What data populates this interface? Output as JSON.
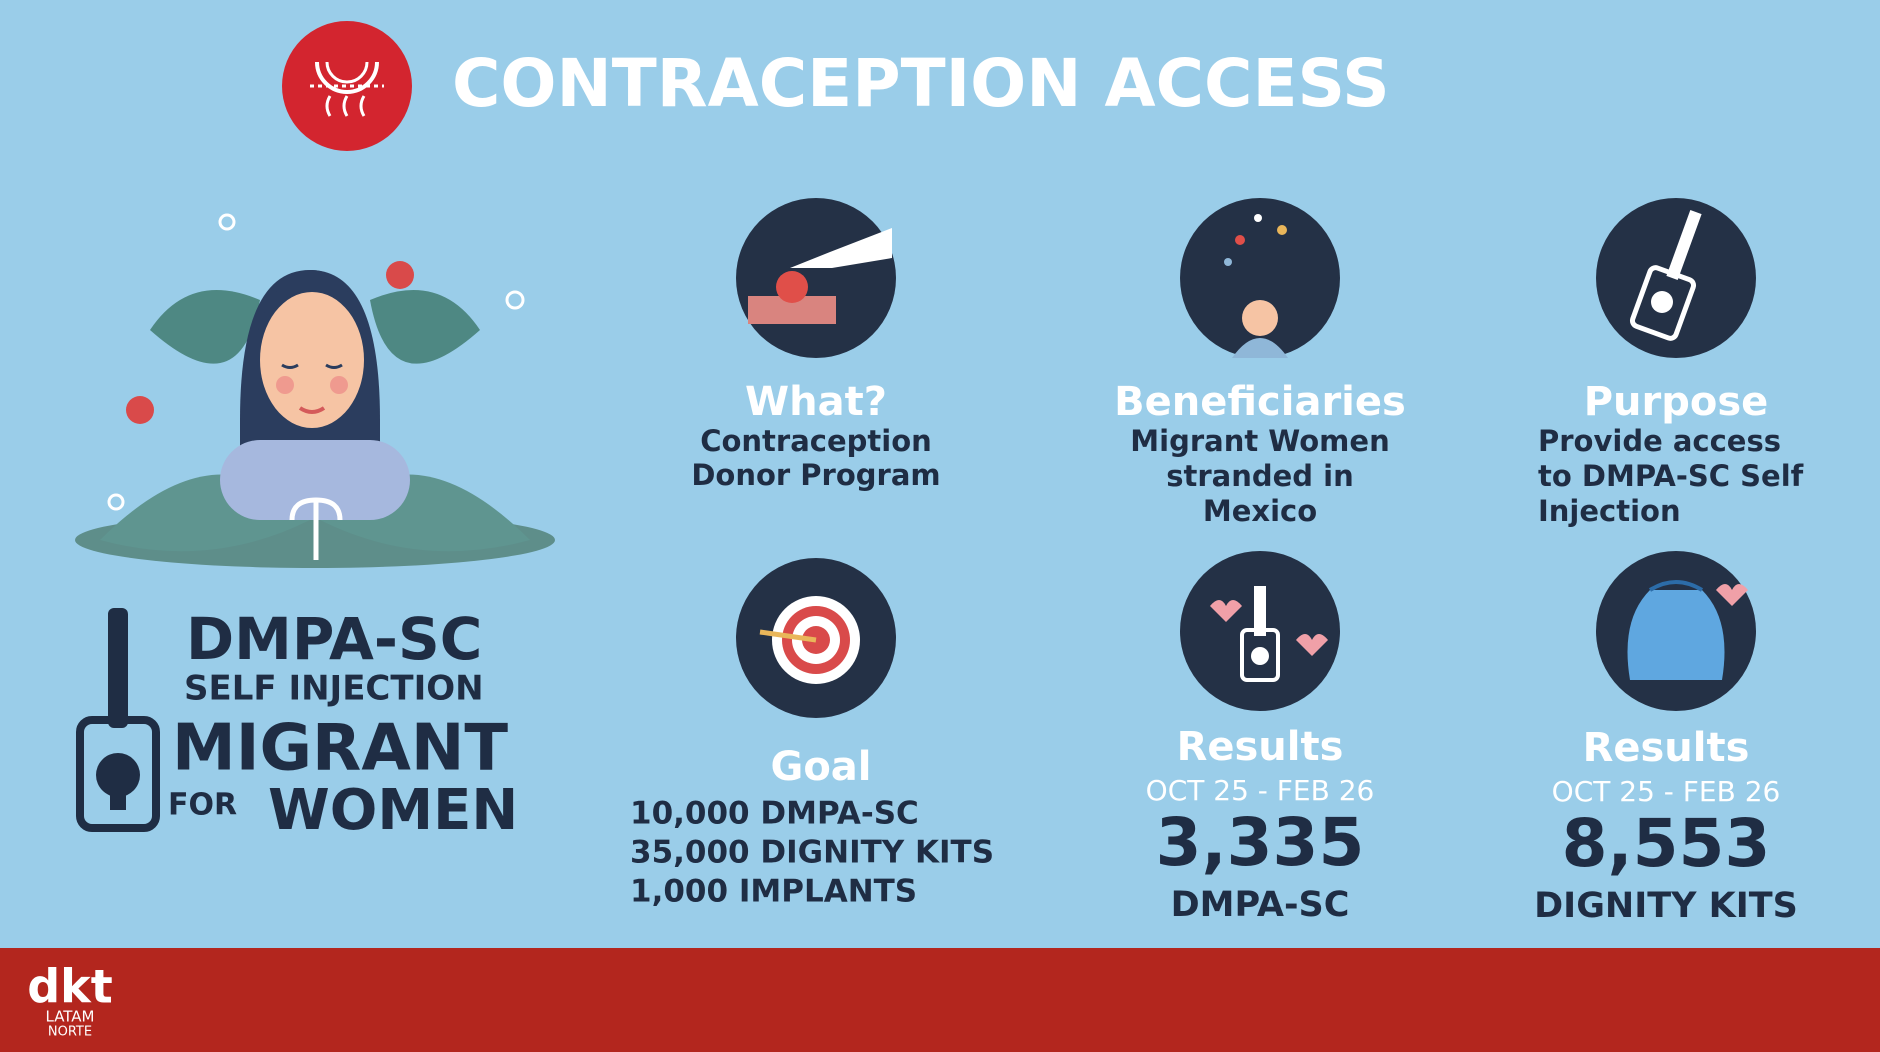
{
  "header": {
    "title": "CONTRACEPTION ACCESS"
  },
  "campaign": {
    "line1": "DMPA-SC",
    "line2": "SELF INJECTION",
    "line3": "MIGRANT",
    "line4": "FOR",
    "line5": "WOMEN"
  },
  "cards": [
    {
      "title": "What?",
      "lines": [
        "Contraception",
        "Donor Program"
      ]
    },
    {
      "title": "Beneficiaries",
      "lines": [
        "Migrant Women",
        "stranded in",
        "Mexico"
      ]
    },
    {
      "title": "Purpose",
      "lines": [
        "Provide access",
        "to DMPA-SC Self",
        "Injection"
      ]
    },
    {
      "title": "Goal",
      "lines": [
        "10,000 DMPA-SC",
        "35,000 DIGNITY KITS",
        "1,000 IMPLANTS"
      ]
    },
    {
      "title": "Results",
      "period": "OCT 25 - FEB 26",
      "figure": "3,335",
      "unit": "DMPA-SC"
    },
    {
      "title": "Results",
      "period": "OCT 25 - FEB 26",
      "figure": "8,553",
      "unit": "DIGNITY KITS"
    }
  ],
  "footer": {
    "logo": "dkt",
    "line1": "LATAM",
    "line2": "NORTE"
  }
}
